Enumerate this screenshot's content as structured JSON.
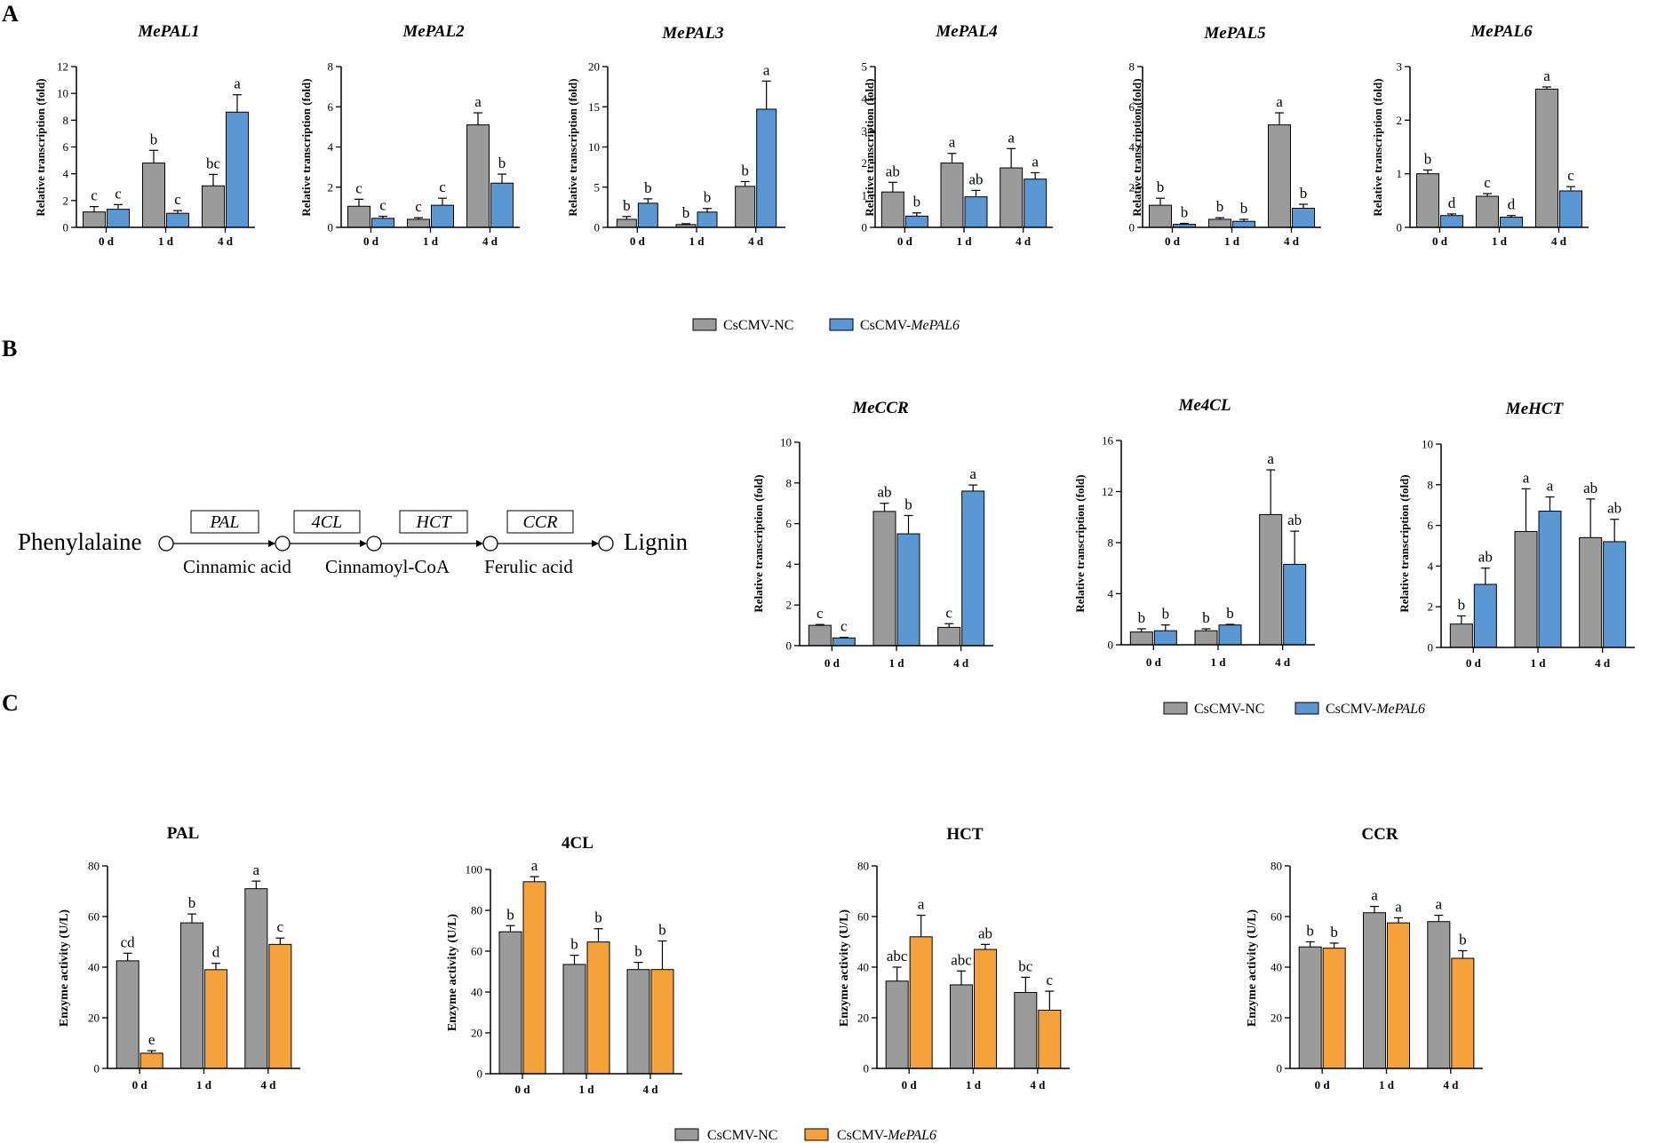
{
  "panels": {
    "a": "A",
    "b": "B",
    "c": "C"
  },
  "colors": {
    "nc": "#9b9b9b",
    "mepal6_blue": "#5b97d3",
    "mepal6_orange": "#f5a13c",
    "stroke": "#000000"
  },
  "legends": {
    "a": {
      "nc": "CsCMV-NC",
      "mepal6_prefix": "CsCMV-",
      "mepal6_gene": "MePAL6"
    },
    "b": {
      "nc": "CsCMV-NC",
      "mepal6_prefix": "CsCMV-",
      "mepal6_gene": "MePAL6"
    },
    "c": {
      "nc": "CsCMV-NC",
      "mepal6_prefix": "CsCMV-",
      "mepal6_gene": "MePAL6"
    }
  },
  "pathway": {
    "start": "Phenylalaine",
    "end": "Lignin",
    "enzymes": [
      "PAL",
      "4CL",
      "HCT",
      "CCR"
    ],
    "intermediates": [
      "Cinnamic acid",
      "Cinnamoyl-CoA",
      "Ferulic acid"
    ]
  },
  "chart_data": [
    {
      "id": "MePAL1",
      "type": "bar",
      "title": "MePAL1",
      "ylabel": "Relative transcription (fold)",
      "categories": [
        "0 d",
        "1 d",
        "4 d"
      ],
      "ylim": [
        0,
        12
      ],
      "yticks": [
        "0",
        "2",
        "4",
        "6",
        "8",
        "10",
        "12"
      ],
      "series": [
        {
          "name": "CsCMV-NC",
          "values": [
            1.15,
            4.8,
            3.1
          ],
          "errors": [
            0.4,
            0.95,
            0.85
          ],
          "sig": [
            "c",
            "b",
            "bc"
          ]
        },
        {
          "name": "CsCMV-MePAL6",
          "values": [
            1.35,
            1.05,
            8.6
          ],
          "errors": [
            0.35,
            0.2,
            1.3
          ],
          "sig": [
            "c",
            "c",
            "a"
          ]
        }
      ]
    },
    {
      "id": "MePAL2",
      "type": "bar",
      "title": "MePAL2",
      "ylabel": "Relative transcription (fold)",
      "categories": [
        "0 d",
        "1 d",
        "4 d"
      ],
      "ylim": [
        0,
        8
      ],
      "yticks": [
        "0",
        "2",
        "4",
        "6",
        "8"
      ],
      "series": [
        {
          "name": "CsCMV-NC",
          "values": [
            1.05,
            0.4,
            5.1
          ],
          "errors": [
            0.35,
            0.08,
            0.6
          ],
          "sig": [
            "c",
            "c",
            "a"
          ]
        },
        {
          "name": "CsCMV-MePAL6",
          "values": [
            0.45,
            1.1,
            2.2
          ],
          "errors": [
            0.1,
            0.35,
            0.45
          ],
          "sig": [
            "c",
            "c",
            "b"
          ]
        }
      ]
    },
    {
      "id": "MePAL3",
      "type": "bar",
      "title": "MePAL3",
      "ylabel": "Relative transcription (fold)",
      "categories": [
        "0 d",
        "1 d",
        "4 d"
      ],
      "ylim": [
        0,
        20
      ],
      "yticks": [
        "0",
        "5",
        "10",
        "15",
        "20"
      ],
      "series": [
        {
          "name": "CsCMV-NC",
          "values": [
            1.0,
            0.35,
            5.1
          ],
          "errors": [
            0.35,
            0.1,
            0.6
          ],
          "sig": [
            "b",
            "b",
            "b"
          ]
        },
        {
          "name": "CsCMV-MePAL6",
          "values": [
            3.0,
            1.9,
            14.7
          ],
          "errors": [
            0.55,
            0.45,
            3.5
          ],
          "sig": [
            "b",
            "b",
            "a"
          ]
        }
      ]
    },
    {
      "id": "MePAL4",
      "type": "bar",
      "title": "MePAL4",
      "ylabel": "Relative transcription (fold)",
      "categories": [
        "0 d",
        "1 d",
        "4 d"
      ],
      "ylim": [
        0,
        5
      ],
      "yticks": [
        "0",
        "1",
        "2",
        "3",
        "4",
        "5"
      ],
      "series": [
        {
          "name": "CsCMV-NC",
          "values": [
            1.1,
            2.0,
            1.85
          ],
          "errors": [
            0.3,
            0.3,
            0.6
          ],
          "sig": [
            "ab",
            "a",
            "a"
          ]
        },
        {
          "name": "CsCMV-MePAL6",
          "values": [
            0.35,
            0.95,
            1.5
          ],
          "errors": [
            0.1,
            0.2,
            0.2
          ],
          "sig": [
            "b",
            "ab",
            "a"
          ]
        }
      ]
    },
    {
      "id": "MePAL5",
      "type": "bar",
      "title": "MePAL5",
      "ylabel": "Relative transcription (fold)",
      "categories": [
        "0 d",
        "1 d",
        "4 d"
      ],
      "ylim": [
        0,
        8
      ],
      "yticks": [
        "0",
        "2",
        "4",
        "6",
        "8"
      ],
      "series": [
        {
          "name": "CsCMV-NC",
          "values": [
            1.1,
            0.4,
            5.1
          ],
          "errors": [
            0.35,
            0.08,
            0.6
          ],
          "sig": [
            "b",
            "b",
            "a"
          ]
        },
        {
          "name": "CsCMV-MePAL6",
          "values": [
            0.15,
            0.3,
            0.95
          ],
          "errors": [
            0.05,
            0.1,
            0.2
          ],
          "sig": [
            "b",
            "b",
            "b"
          ]
        }
      ]
    },
    {
      "id": "MePAL6",
      "type": "bar",
      "title": "MePAL6",
      "ylabel": "Relative transcription (fold)",
      "categories": [
        "0 d",
        "1 d",
        "4 d"
      ],
      "ylim": [
        0,
        3
      ],
      "yticks": [
        "0",
        "1",
        "2",
        "3"
      ],
      "series": [
        {
          "name": "CsCMV-NC",
          "values": [
            1.0,
            0.58,
            2.58
          ],
          "errors": [
            0.07,
            0.05,
            0.04
          ],
          "sig": [
            "b",
            "c",
            "a"
          ]
        },
        {
          "name": "CsCMV-MePAL6",
          "values": [
            0.22,
            0.19,
            0.68
          ],
          "errors": [
            0.03,
            0.03,
            0.08
          ],
          "sig": [
            "d",
            "d",
            "c"
          ]
        }
      ]
    },
    {
      "id": "MeCCR",
      "type": "bar",
      "title": "MeCCR",
      "ylabel": "Relative transcription (fold)",
      "categories": [
        "0 d",
        "1 d",
        "4 d"
      ],
      "ylim": [
        0,
        10
      ],
      "yticks": [
        "0",
        "2",
        "4",
        "6",
        "8",
        "10"
      ],
      "series": [
        {
          "name": "CsCMV-NC",
          "values": [
            1.0,
            6.6,
            0.9
          ],
          "errors": [
            0.04,
            0.4,
            0.18
          ],
          "sig": [
            "c",
            "ab",
            "c"
          ]
        },
        {
          "name": "CsCMV-MePAL6",
          "values": [
            0.38,
            5.5,
            7.6
          ],
          "errors": [
            0.03,
            0.9,
            0.3
          ],
          "sig": [
            "c",
            "b",
            "a"
          ]
        }
      ]
    },
    {
      "id": "Me4CL",
      "type": "bar",
      "title": "Me4CL",
      "ylabel": "Relative transcription (fold)",
      "categories": [
        "0 d",
        "1 d",
        "4 d"
      ],
      "ylim": [
        0,
        16
      ],
      "yticks": [
        "0",
        "4",
        "8",
        "12",
        "16"
      ],
      "series": [
        {
          "name": "CsCMV-NC",
          "values": [
            1.0,
            1.1,
            10.2
          ],
          "errors": [
            0.25,
            0.15,
            3.5
          ],
          "sig": [
            "b",
            "b",
            "a"
          ]
        },
        {
          "name": "CsCMV-MePAL6",
          "values": [
            1.1,
            1.55,
            6.3
          ],
          "errors": [
            0.45,
            0.05,
            2.6
          ],
          "sig": [
            "b",
            "b",
            "ab"
          ]
        }
      ]
    },
    {
      "id": "MeHCT",
      "type": "bar",
      "title": "MeHCT",
      "ylabel": "Relative transcription (fold)",
      "categories": [
        "0 d",
        "1 d",
        "4 d"
      ],
      "ylim": [
        0,
        10
      ],
      "yticks": [
        "0",
        "2",
        "4",
        "6",
        "8",
        "10"
      ],
      "series": [
        {
          "name": "CsCMV-NC",
          "values": [
            1.15,
            5.7,
            5.4
          ],
          "errors": [
            0.4,
            2.1,
            1.9
          ],
          "sig": [
            "b",
            "a",
            "ab"
          ]
        },
        {
          "name": "CsCMV-MePAL6",
          "values": [
            3.1,
            6.7,
            5.2
          ],
          "errors": [
            0.8,
            0.7,
            1.1
          ],
          "sig": [
            "ab",
            "a",
            "ab"
          ]
        }
      ]
    },
    {
      "id": "PAL",
      "type": "bar",
      "title": "PAL",
      "ylabel": "Enzyme activity (U/L)",
      "categories": [
        "0 d",
        "1 d",
        "4 d"
      ],
      "ylim": [
        0,
        80
      ],
      "yticks": [
        "0",
        "20",
        "40",
        "60",
        "80"
      ],
      "series": [
        {
          "name": "CsCMV-NC",
          "values": [
            42.5,
            57.5,
            71
          ],
          "errors": [
            3,
            3.5,
            3
          ],
          "sig": [
            "cd",
            "b",
            "a"
          ]
        },
        {
          "name": "CsCMV-MePAL6",
          "values": [
            6,
            39,
            49
          ],
          "errors": [
            1,
            2.5,
            2.5
          ],
          "sig": [
            "e",
            "d",
            "c"
          ]
        }
      ]
    },
    {
      "id": "4CL",
      "type": "bar",
      "title": "4CL",
      "ylabel": "Enzyme activity (U/L)",
      "categories": [
        "0 d",
        "1 d",
        "4 d"
      ],
      "ylim": [
        0,
        100
      ],
      "yticks": [
        "0",
        "20",
        "40",
        "60",
        "80",
        "100"
      ],
      "series": [
        {
          "name": "CsCMV-NC",
          "values": [
            69.5,
            53.5,
            51
          ],
          "errors": [
            3,
            4.5,
            3.5
          ],
          "sig": [
            "b",
            "b",
            "b"
          ]
        },
        {
          "name": "CsCMV-MePAL6",
          "values": [
            94,
            64.5,
            51
          ],
          "errors": [
            2.5,
            6.5,
            14
          ],
          "sig": [
            "a",
            "b",
            "b"
          ]
        }
      ]
    },
    {
      "id": "HCT",
      "type": "bar",
      "title": "HCT",
      "ylabel": "Enzyme activity (U/L)",
      "categories": [
        "0 d",
        "1 d",
        "4 d"
      ],
      "ylim": [
        0,
        80
      ],
      "yticks": [
        "0",
        "20",
        "40",
        "60",
        "80"
      ],
      "series": [
        {
          "name": "CsCMV-NC",
          "values": [
            34.5,
            33,
            30
          ],
          "errors": [
            5.5,
            5.5,
            6
          ],
          "sig": [
            "abc",
            "abc",
            "bc"
          ]
        },
        {
          "name": "CsCMV-MePAL6",
          "values": [
            52,
            47,
            23
          ],
          "errors": [
            8.5,
            2,
            7.5
          ],
          "sig": [
            "a",
            "ab",
            "c"
          ]
        }
      ]
    },
    {
      "id": "CCR",
      "type": "bar",
      "title": "CCR",
      "ylabel": "Enzyme activity (U/L)",
      "categories": [
        "0 d",
        "1 d",
        "4 d"
      ],
      "ylim": [
        0,
        80
      ],
      "yticks": [
        "0",
        "20",
        "40",
        "60",
        "80"
      ],
      "series": [
        {
          "name": "CsCMV-NC",
          "values": [
            48,
            61.5,
            58
          ],
          "errors": [
            2,
            2.5,
            2.5
          ],
          "sig": [
            "b",
            "a",
            "a"
          ]
        },
        {
          "name": "CsCMV-MePAL6",
          "values": [
            47.5,
            57.5,
            43.5
          ],
          "errors": [
            2,
            2,
            3
          ],
          "sig": [
            "b",
            "a",
            "b"
          ]
        }
      ]
    }
  ]
}
